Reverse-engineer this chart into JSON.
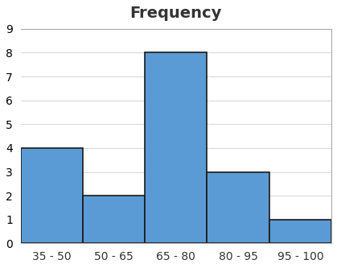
{
  "title": "Frequency",
  "categories": [
    "35 - 50",
    "50 - 65",
    "65 - 80",
    "80 - 95",
    "95 - 100"
  ],
  "values": [
    4,
    2,
    8,
    3,
    1
  ],
  "bar_color": "#5B9BD5",
  "bar_edgecolor": "#1a1a1a",
  "ylim": [
    0,
    9
  ],
  "yticks": [
    0,
    1,
    2,
    3,
    4,
    5,
    6,
    7,
    8,
    9
  ],
  "title_fontsize": 14,
  "tick_fontsize": 10,
  "background_color": "#ffffff",
  "grid_color": "#d9d9d9"
}
